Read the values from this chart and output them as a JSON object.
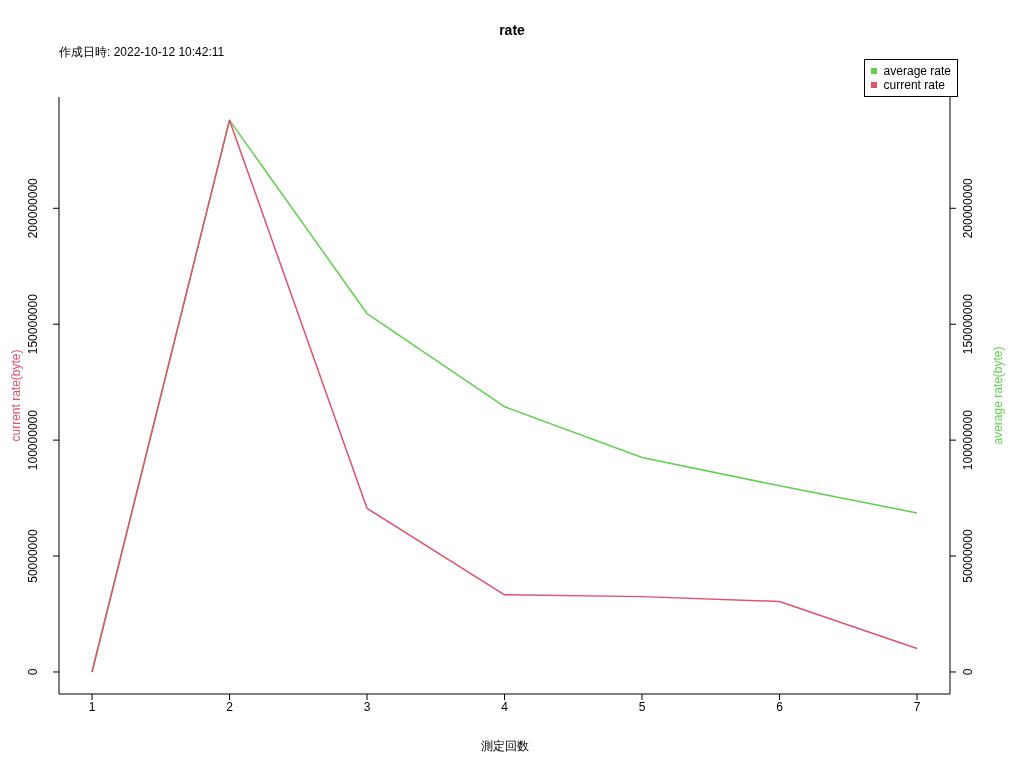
{
  "chart_data": {
    "type": "line",
    "title": "rate",
    "xlabel": "測定回数",
    "ylabel": "current rate(byte)",
    "y2label": "average rate(byte)",
    "annotations": [
      "作成日時: 2022-10-12 10:42:11"
    ],
    "x": [
      1,
      2,
      3,
      4,
      5,
      6,
      7
    ],
    "series": [
      {
        "name": "average rate",
        "color": "#61d04f",
        "axis": "y2",
        "values": [
          0,
          238000000,
          154600000,
          114400000,
          92500000,
          80300000,
          68600000
        ]
      },
      {
        "name": "current rate",
        "color": "#df536b",
        "values": [
          0,
          238000000,
          70600000,
          33300000,
          32500000,
          30400000,
          10100000
        ]
      }
    ],
    "xlim": [
      0.76,
      7.24
    ],
    "xticks": [
      1,
      2,
      3,
      4,
      5,
      6,
      7
    ],
    "ylim": [
      -9500000,
      248000000
    ],
    "yticks": [
      0,
      50000000,
      100000000,
      150000000,
      200000000
    ],
    "y2lim": [
      -9500000,
      248000000
    ],
    "y2ticks": [
      0,
      50000000,
      100000000,
      150000000,
      200000000
    ],
    "legend": "top right",
    "marker": "none",
    "line_style": "solid",
    "grid": false
  }
}
